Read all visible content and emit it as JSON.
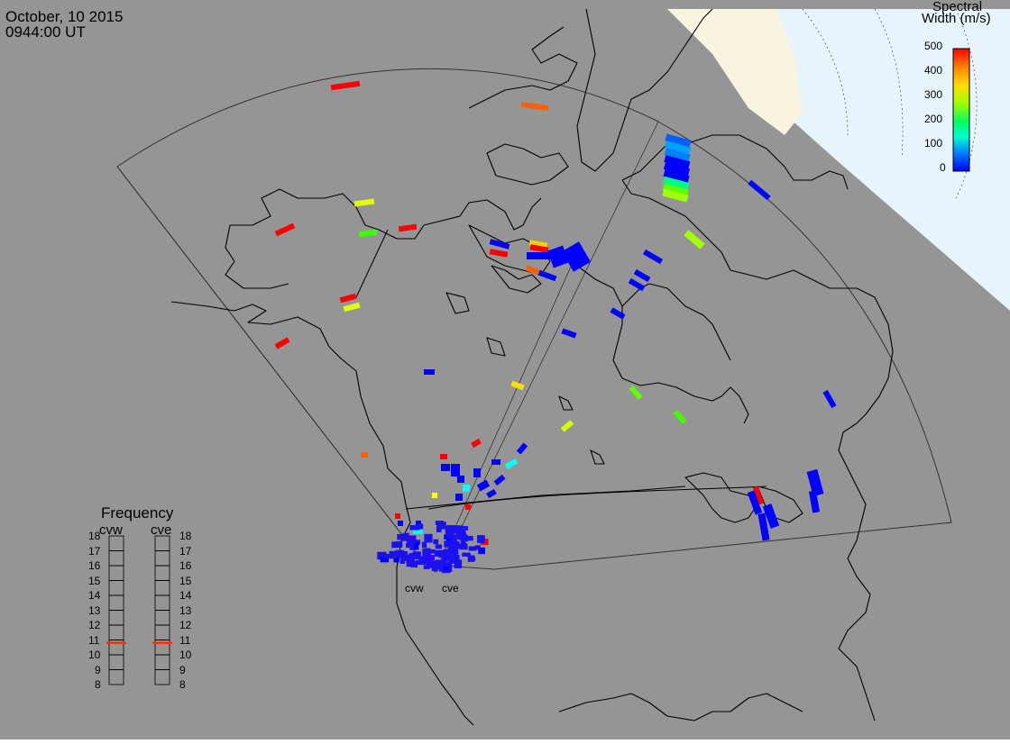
{
  "header": {
    "date": "October, 10 2015",
    "time": "0944:00 UT"
  },
  "colorbar": {
    "title_line1": "Spectral",
    "title_line2": "Width (m/s)",
    "ticks": [
      "500",
      "400",
      "300",
      "200",
      "100",
      "0"
    ],
    "range": [
      0,
      500
    ],
    "gradient": [
      "#ff0000",
      "#ff6000",
      "#ffcc00",
      "#c0ff00",
      "#40ff00",
      "#00ff80",
      "#00ffff",
      "#0080ff",
      "#0000ff"
    ]
  },
  "frequency_panel": {
    "title": "Frequency",
    "radars": [
      {
        "id": "cvw",
        "freq_mhz": 10.8
      },
      {
        "id": "cve",
        "freq_mhz": 10.8
      }
    ],
    "ticks": [
      "18",
      "17",
      "16",
      "15",
      "14",
      "13",
      "12",
      "11",
      "10",
      "9",
      "8"
    ],
    "range": [
      8,
      18
    ],
    "marker_color": "#ff3000"
  },
  "sites": [
    {
      "name": "cvw"
    },
    {
      "name": "cve"
    }
  ],
  "colors": {
    "map_background": "#959595",
    "polar_region": "#e8f4fc",
    "land_cap": "#f8f4e0",
    "coastline": "#000000",
    "fov_outline": "#444444"
  }
}
